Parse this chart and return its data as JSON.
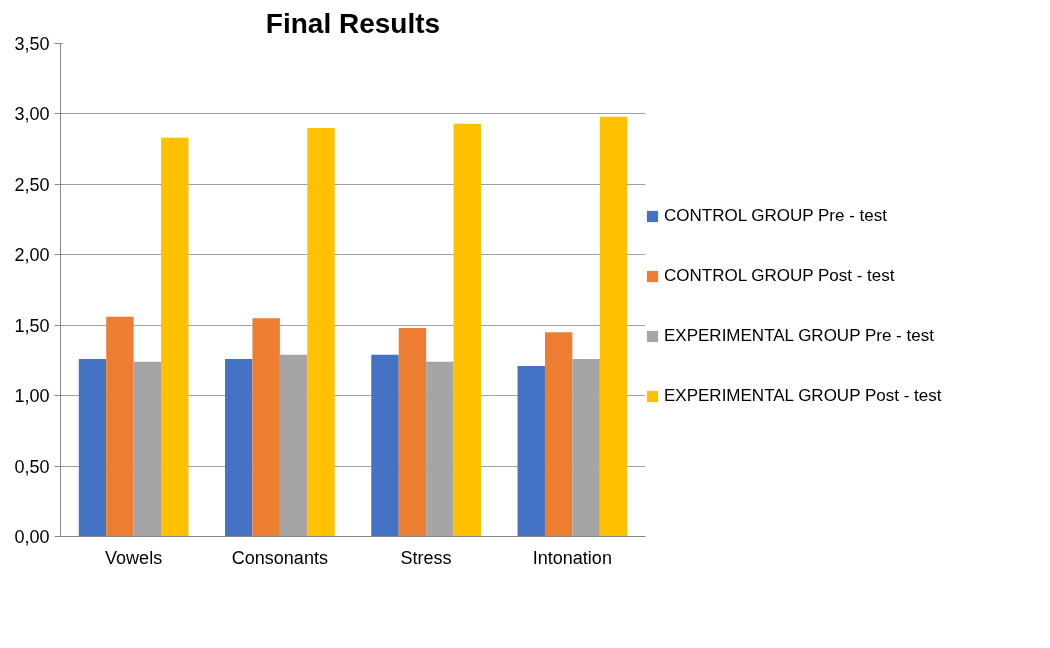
{
  "chart_data": {
    "type": "bar",
    "title": "Final Results",
    "categories": [
      "Vowels",
      "Consonants",
      "Stress",
      "Intonation"
    ],
    "series": [
      {
        "name": "CONTROL GROUP Pre - test",
        "color": "#4472c4",
        "values": [
          1.26,
          1.26,
          1.29,
          1.21
        ]
      },
      {
        "name": "CONTROL GROUP Post - test",
        "color": "#ed7d31",
        "values": [
          1.56,
          1.55,
          1.48,
          1.45
        ]
      },
      {
        "name": "EXPERIMENTAL GROUP Pre - test",
        "color": "#a5a5a5",
        "values": [
          1.24,
          1.29,
          1.24,
          1.26
        ]
      },
      {
        "name": "EXPERIMENTAL GROUP Post - test",
        "color": "#ffc000",
        "values": [
          2.83,
          2.9,
          2.93,
          2.98
        ]
      }
    ],
    "ylim": [
      0,
      3.5
    ],
    "yticks": [
      {
        "value": 0,
        "label": "0,00"
      },
      {
        "value": 0.5,
        "label": "0,50"
      },
      {
        "value": 1,
        "label": "1,00"
      },
      {
        "value": 1.5,
        "label": "1,50"
      },
      {
        "value": 2,
        "label": "2,00"
      },
      {
        "value": 2.5,
        "label": "2,50"
      },
      {
        "value": 3,
        "label": "3,00"
      },
      {
        "value": 3.5,
        "label": "3,50"
      }
    ],
    "grid": "y",
    "legend": "right"
  }
}
